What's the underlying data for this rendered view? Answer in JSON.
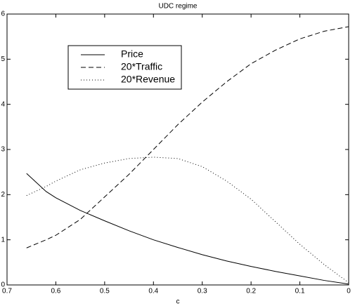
{
  "chart_data": {
    "type": "line",
    "title": "UDC regime",
    "x_label": "c",
    "x": [
      0.66,
      0.62,
      0.6,
      0.55,
      0.5,
      0.45,
      0.4,
      0.35,
      0.3,
      0.25,
      0.2,
      0.15,
      0.1,
      0.05,
      0.0
    ],
    "series": [
      {
        "name": "Price",
        "color": "#000000",
        "style": "solid",
        "values": [
          2.47,
          2.07,
          1.93,
          1.65,
          1.42,
          1.2,
          1.0,
          0.83,
          0.67,
          0.53,
          0.41,
          0.3,
          0.2,
          0.1,
          0.02
        ]
      },
      {
        "name": "20*Traffic",
        "color": "#000000",
        "style": "dashed",
        "values": [
          0.82,
          1.0,
          1.1,
          1.45,
          1.95,
          2.45,
          3.0,
          3.55,
          4.05,
          4.5,
          4.9,
          5.2,
          5.45,
          5.62,
          5.72
        ]
      },
      {
        "name": "20*Revenue",
        "color": "#000000",
        "style": "dotted",
        "values": [
          1.98,
          2.18,
          2.3,
          2.55,
          2.7,
          2.8,
          2.83,
          2.8,
          2.62,
          2.3,
          1.9,
          1.4,
          0.9,
          0.45,
          0.05
        ]
      }
    ],
    "xlim": [
      0.7,
      0
    ],
    "xticks": [
      0.7,
      0.6,
      0.5,
      0.4,
      0.3,
      0.2,
      0.1,
      0
    ],
    "ylim": [
      0,
      6
    ],
    "yticks": [
      0,
      1,
      2,
      3,
      4,
      5,
      6
    ],
    "grid": false,
    "legend": "upper left"
  }
}
